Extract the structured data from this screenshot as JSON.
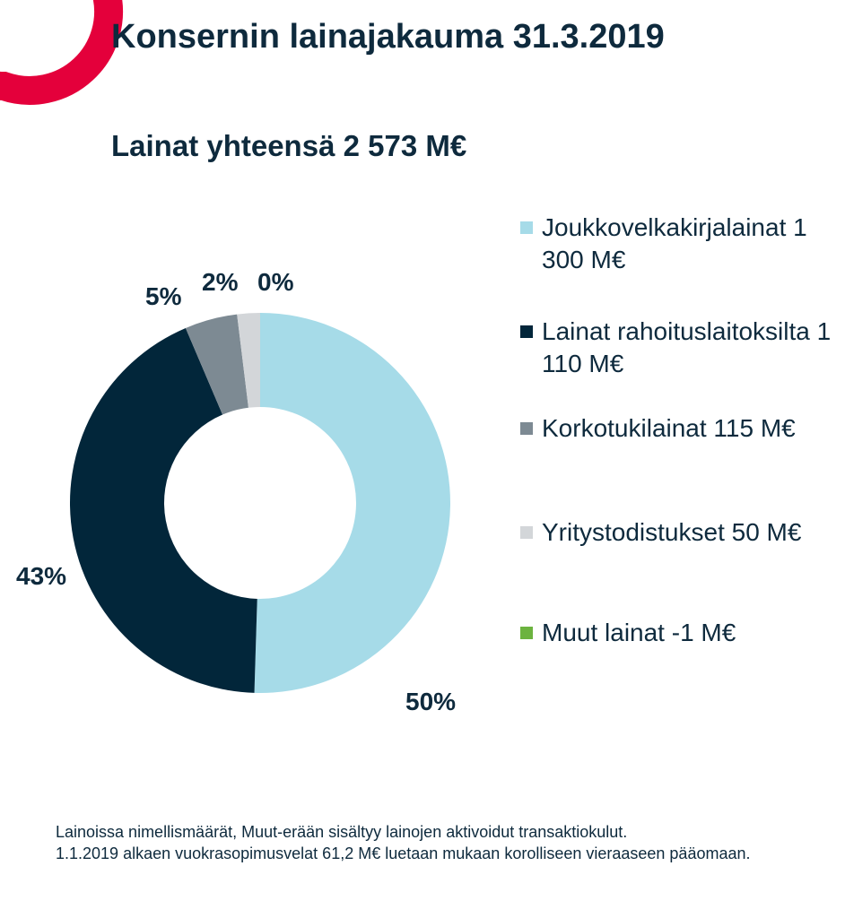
{
  "brand": {
    "accent_color": "#e4003b"
  },
  "header": {
    "title": "Konsernin lainajakauma 31.3.2019"
  },
  "chart_data": {
    "type": "pie",
    "style": "donut",
    "title": "Lainat yhteensä 2 573 M€",
    "unit": "M€",
    "slices": [
      {
        "legend": "Joukkovelkakirjalainat 1 300 M€",
        "value": 1300,
        "percent_label": "50%",
        "color": "#a6dbe8"
      },
      {
        "legend": "Lainat rahoituslaitoksilta 1 110 M€",
        "value": 1110,
        "percent_label": "43%",
        "color": "#02263a"
      },
      {
        "legend": "Korkotukilainat 115 M€",
        "value": 115,
        "percent_label": "5%",
        "color": "#7d8a93"
      },
      {
        "legend": "Yritystodistukset 50 M€",
        "value": 50,
        "percent_label": "2%",
        "color": "#d3d6d9"
      },
      {
        "legend": "Muut lainat -1 M€",
        "value": -1,
        "percent_label": "0%",
        "color": "#6cb33f"
      }
    ],
    "legend_position": "right"
  },
  "footnote": {
    "line1": "Lainoissa nimellismäärät, Muut-erään sisältyy lainojen aktivoidut transaktiokulut.",
    "line2": "1.1.2019 alkaen vuokrasopimusvelat 61,2 M€ luetaan mukaan korolliseen vieraaseen pääomaan."
  }
}
